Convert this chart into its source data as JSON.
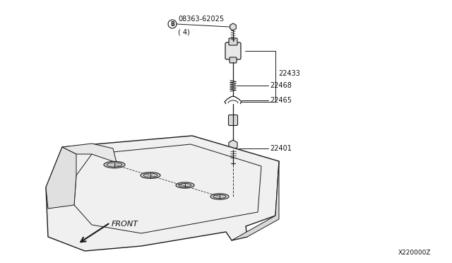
{
  "background_color": "#ffffff",
  "line_color": "#1a1a1a",
  "text_color": "#111111",
  "fig_width": 6.4,
  "fig_height": 3.72,
  "dpi": 100,
  "parts": {
    "bolt_label": "08363-62025",
    "bolt_sublabel": "( 4)",
    "p22433": "22433",
    "p22468": "22468",
    "p22465": "22465",
    "p22401": "22401",
    "front_label": "FRONT",
    "diagram_id": "X220000Z"
  }
}
